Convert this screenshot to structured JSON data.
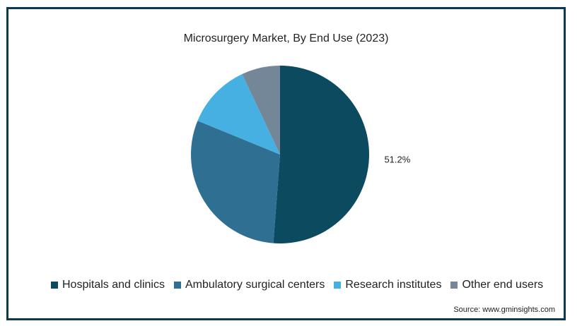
{
  "chart_data": {
    "type": "pie",
    "title": "Microsurgery Market, By End Use (2023)",
    "categories": [
      "Hospitals and clinics",
      "Ambulatory surgical centers",
      "Research institutes",
      "Other end users"
    ],
    "values": [
      51.2,
      30.0,
      11.8,
      7.0
    ],
    "colors": [
      "#0b4a5f",
      "#2f6f92",
      "#46b0e3",
      "#748798"
    ],
    "data_labels": [
      "51.2%",
      null,
      null,
      null
    ],
    "start_angle_deg": 0,
    "direction": "clockwise",
    "legend_position": "bottom",
    "source": "Source: www.gminsights.com"
  }
}
